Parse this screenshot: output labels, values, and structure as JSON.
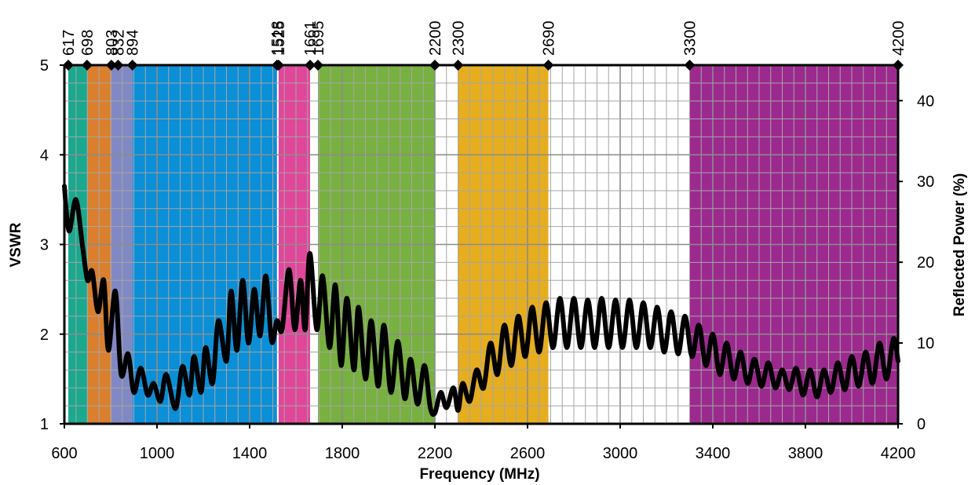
{
  "chart_data": {
    "type": "line",
    "xlabel": "Frequency (MHz)",
    "ylabel_left": "VSWR",
    "ylabel_right": "Reflected Power (%)",
    "xlim": [
      600,
      4200
    ],
    "ylim_left": [
      1,
      5
    ],
    "ylim_right": [
      0,
      44.4
    ],
    "x_ticks": [
      "600",
      "1000",
      "1400",
      "1800",
      "2200",
      "2600",
      "3000",
      "3400",
      "3800",
      "4200"
    ],
    "y_ticks_left": [
      "1",
      "2",
      "3",
      "4",
      "5"
    ],
    "y_ticks_right": [
      "0",
      "10",
      "20",
      "30",
      "40"
    ],
    "x_tick_values": [
      600,
      1000,
      1400,
      1800,
      2200,
      2600,
      3000,
      3400,
      3800,
      4200
    ],
    "y_tick_values_left": [
      1,
      2,
      3,
      4,
      5
    ],
    "y_tick_values_right": [
      0,
      10,
      20,
      30,
      40
    ],
    "grid": true,
    "bands": [
      {
        "start": 617,
        "end": 698,
        "color": "#1aa88e"
      },
      {
        "start": 698,
        "end": 803,
        "color": "#d97f2e"
      },
      {
        "start": 803,
        "end": 894,
        "color": "#8189c4"
      },
      {
        "start": 894,
        "end": 1518,
        "color": "#0b8fd6"
      },
      {
        "start": 1525,
        "end": 1661,
        "color": "#e0479a"
      },
      {
        "start": 1695,
        "end": 2200,
        "color": "#78b041"
      },
      {
        "start": 2300,
        "end": 2690,
        "color": "#e6ad1f"
      },
      {
        "start": 3300,
        "end": 4200,
        "color": "#9c2a8e"
      }
    ],
    "markers": [
      {
        "x": 617,
        "label": "617"
      },
      {
        "x": 698,
        "label": "698"
      },
      {
        "x": 803,
        "label": "803"
      },
      {
        "x": 832,
        "label": "832"
      },
      {
        "x": 894,
        "label": "894"
      },
      {
        "x": 1518,
        "label": "1518"
      },
      {
        "x": 1525,
        "label": "1525"
      },
      {
        "x": 1661,
        "label": "1661"
      },
      {
        "x": 1695,
        "label": "1695"
      },
      {
        "x": 2200,
        "label": "2200"
      },
      {
        "x": 2300,
        "label": "2300"
      },
      {
        "x": 2690,
        "label": "2690"
      },
      {
        "x": 3300,
        "label": "3300"
      },
      {
        "x": 4200,
        "label": "4200"
      }
    ],
    "series": [
      {
        "color": "#000000",
        "x": [
          600,
          620,
          650,
          680,
          700,
          720,
          745,
          770,
          790,
          820,
          845,
          875,
          900,
          930,
          960,
          985,
          1015,
          1040,
          1080,
          1110,
          1140,
          1160,
          1190,
          1210,
          1240,
          1265,
          1300,
          1320,
          1345,
          1370,
          1395,
          1420,
          1445,
          1470,
          1495,
          1518,
          1540,
          1570,
          1595,
          1620,
          1640,
          1660,
          1690,
          1715,
          1745,
          1770,
          1795,
          1820,
          1850,
          1870,
          1900,
          1925,
          1955,
          1980,
          2010,
          2040,
          2070,
          2095,
          2125,
          2155,
          2180,
          2200,
          2225,
          2250,
          2280,
          2300,
          2320,
          2350,
          2380,
          2410,
          2440,
          2470,
          2500,
          2530,
          2560,
          2590,
          2620,
          2650,
          2680,
          2710,
          2740,
          2770,
          2800,
          2830,
          2860,
          2890,
          2920,
          2950,
          2980,
          3010,
          3040,
          3070,
          3100,
          3130,
          3160,
          3190,
          3220,
          3250,
          3280,
          3310,
          3340,
          3370,
          3400,
          3430,
          3460,
          3490,
          3520,
          3550,
          3580,
          3610,
          3640,
          3670,
          3700,
          3730,
          3760,
          3790,
          3820,
          3850,
          3880,
          3910,
          3940,
          3970,
          4000,
          4030,
          4060,
          4090,
          4120,
          4150,
          4180,
          4200
        ],
        "values": [
          3.65,
          3.15,
          3.5,
          2.95,
          2.6,
          2.7,
          2.25,
          2.6,
          1.82,
          2.48,
          1.55,
          1.78,
          1.35,
          1.62,
          1.32,
          1.45,
          1.25,
          1.55,
          1.17,
          1.64,
          1.32,
          1.75,
          1.35,
          1.85,
          1.45,
          2.15,
          1.7,
          2.48,
          1.82,
          2.6,
          1.9,
          2.5,
          1.98,
          2.65,
          1.92,
          2.15,
          2.05,
          2.72,
          2.05,
          2.6,
          2.05,
          2.9,
          2.05,
          2.65,
          1.85,
          2.55,
          1.65,
          2.4,
          1.6,
          2.3,
          1.5,
          2.15,
          1.42,
          2.1,
          1.35,
          1.92,
          1.28,
          1.72,
          1.22,
          1.65,
          1.18,
          1.12,
          1.35,
          1.18,
          1.4,
          1.15,
          1.45,
          1.25,
          1.6,
          1.4,
          1.9,
          1.55,
          2.1,
          1.65,
          2.2,
          1.75,
          2.3,
          1.8,
          2.35,
          1.85,
          2.4,
          1.85,
          2.4,
          1.85,
          2.38,
          1.85,
          2.4,
          1.85,
          2.38,
          1.85,
          2.38,
          1.85,
          2.35,
          1.85,
          2.3,
          1.8,
          2.25,
          1.78,
          2.2,
          1.75,
          2.1,
          1.65,
          2.0,
          1.55,
          1.9,
          1.5,
          1.8,
          1.45,
          1.72,
          1.42,
          1.68,
          1.4,
          1.6,
          1.38,
          1.62,
          1.32,
          1.6,
          1.3,
          1.6,
          1.35,
          1.68,
          1.38,
          1.75,
          1.42,
          1.8,
          1.45,
          1.9,
          1.5,
          1.95,
          1.7
        ]
      }
    ]
  }
}
